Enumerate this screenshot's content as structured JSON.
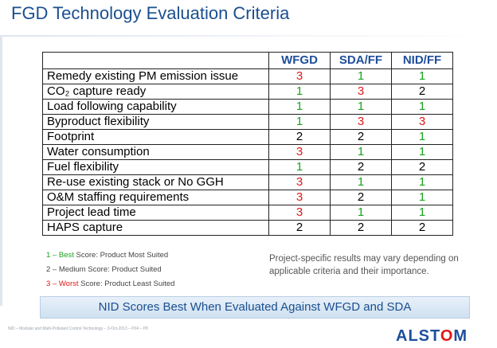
{
  "title": "FGD Technology Evaluation Criteria",
  "table": {
    "columns": [
      "WFGD",
      "SDA/FF",
      "NID/FF"
    ],
    "rows": [
      {
        "criterion": "Remedy existing PM emission issue",
        "scores": [
          3,
          1,
          1
        ]
      },
      {
        "criterion": "CO₂ capture ready",
        "scores": [
          1,
          3,
          2
        ]
      },
      {
        "criterion": "Load following capability",
        "scores": [
          1,
          1,
          1
        ]
      },
      {
        "criterion": "Byproduct flexibility",
        "scores": [
          1,
          3,
          3
        ]
      },
      {
        "criterion": "Footprint",
        "scores": [
          2,
          2,
          1
        ]
      },
      {
        "criterion": "Water consumption",
        "scores": [
          3,
          1,
          1
        ]
      },
      {
        "criterion": "Fuel flexibility",
        "scores": [
          1,
          2,
          2
        ]
      },
      {
        "criterion": "Re-use existing stack or No GGH",
        "scores": [
          3,
          1,
          1
        ]
      },
      {
        "criterion": "O&M staffing requirements",
        "scores": [
          3,
          2,
          1
        ]
      },
      {
        "criterion": "Project lead time",
        "scores": [
          3,
          1,
          1
        ]
      },
      {
        "criterion": "HAPS capture",
        "scores": [
          2,
          2,
          2
        ]
      }
    ],
    "score_colors": {
      "1": "#19a31e",
      "2": "#000000",
      "3": "#e01818"
    }
  },
  "legend": [
    {
      "num": "1",
      "dash": " – ",
      "grade": "Best",
      "rest": " Score: Product Most Suited",
      "color": "#19a31e"
    },
    {
      "num": "2",
      "dash": " – ",
      "grade": "Medium",
      "rest": " Score: Product Suited",
      "color": "#444444"
    },
    {
      "num": "3",
      "dash": " – ",
      "grade": "Worst",
      "rest": " Score: Product Least Suited",
      "color": "#e01818"
    }
  ],
  "note": "Project-specific results may vary depending on applicable criteria and their importance.",
  "banner": "NID Scores Best When Evaluated Against WFGD and SDA",
  "footer": "NID – Modular and Multi-Pollutant Control Technology – 3-Oct-2013 – P04 – P8",
  "logo": {
    "pre": "ALST",
    "o": "O",
    "post": "M"
  }
}
